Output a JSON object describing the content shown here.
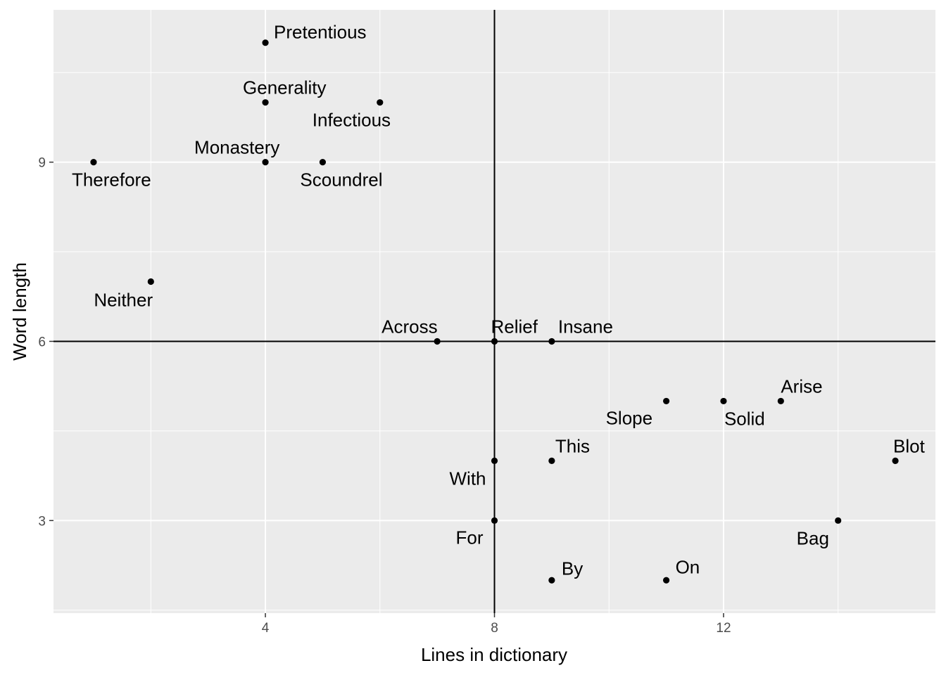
{
  "chart_data": {
    "type": "scatter",
    "xlabel": "Lines in dictionary",
    "ylabel": "Word length",
    "xlim": [
      0.3,
      15.7
    ],
    "ylim": [
      1.45,
      11.55
    ],
    "x_ticks": [
      4,
      8,
      12
    ],
    "y_ticks": [
      3,
      6,
      9
    ],
    "grid": true,
    "reference_lines": {
      "vertical_x": 8,
      "horizontal_y": 6
    },
    "points": [
      {
        "label": "Pretentious",
        "x": 4,
        "y": 11
      },
      {
        "label": "Generality",
        "x": 4,
        "y": 10
      },
      {
        "label": "Infectious",
        "x": 6,
        "y": 10
      },
      {
        "label": "Monastery",
        "x": 4,
        "y": 9
      },
      {
        "label": "Therefore",
        "x": 1,
        "y": 9
      },
      {
        "label": "Scoundrel",
        "x": 5,
        "y": 9
      },
      {
        "label": "Neither",
        "x": 2,
        "y": 7
      },
      {
        "label": "Across",
        "x": 7,
        "y": 6
      },
      {
        "label": "Relief",
        "x": 8,
        "y": 6
      },
      {
        "label": "Insane",
        "x": 9,
        "y": 6
      },
      {
        "label": "Arise",
        "x": 13,
        "y": 5
      },
      {
        "label": "Slope",
        "x": 11,
        "y": 5
      },
      {
        "label": "Solid",
        "x": 12,
        "y": 5
      },
      {
        "label": "This",
        "x": 9,
        "y": 4
      },
      {
        "label": "Blot",
        "x": 15,
        "y": 4
      },
      {
        "label": "With",
        "x": 8,
        "y": 4
      },
      {
        "label": "For",
        "x": 8,
        "y": 3
      },
      {
        "label": "Bag",
        "x": 14,
        "y": 3
      },
      {
        "label": "By",
        "x": 9,
        "y": 2
      },
      {
        "label": "On",
        "x": 11,
        "y": 2
      }
    ]
  },
  "colors": {
    "panel_background": "#ebebeb",
    "grid_major": "#ffffff",
    "points": "#000000",
    "reference_lines": "#000000"
  }
}
